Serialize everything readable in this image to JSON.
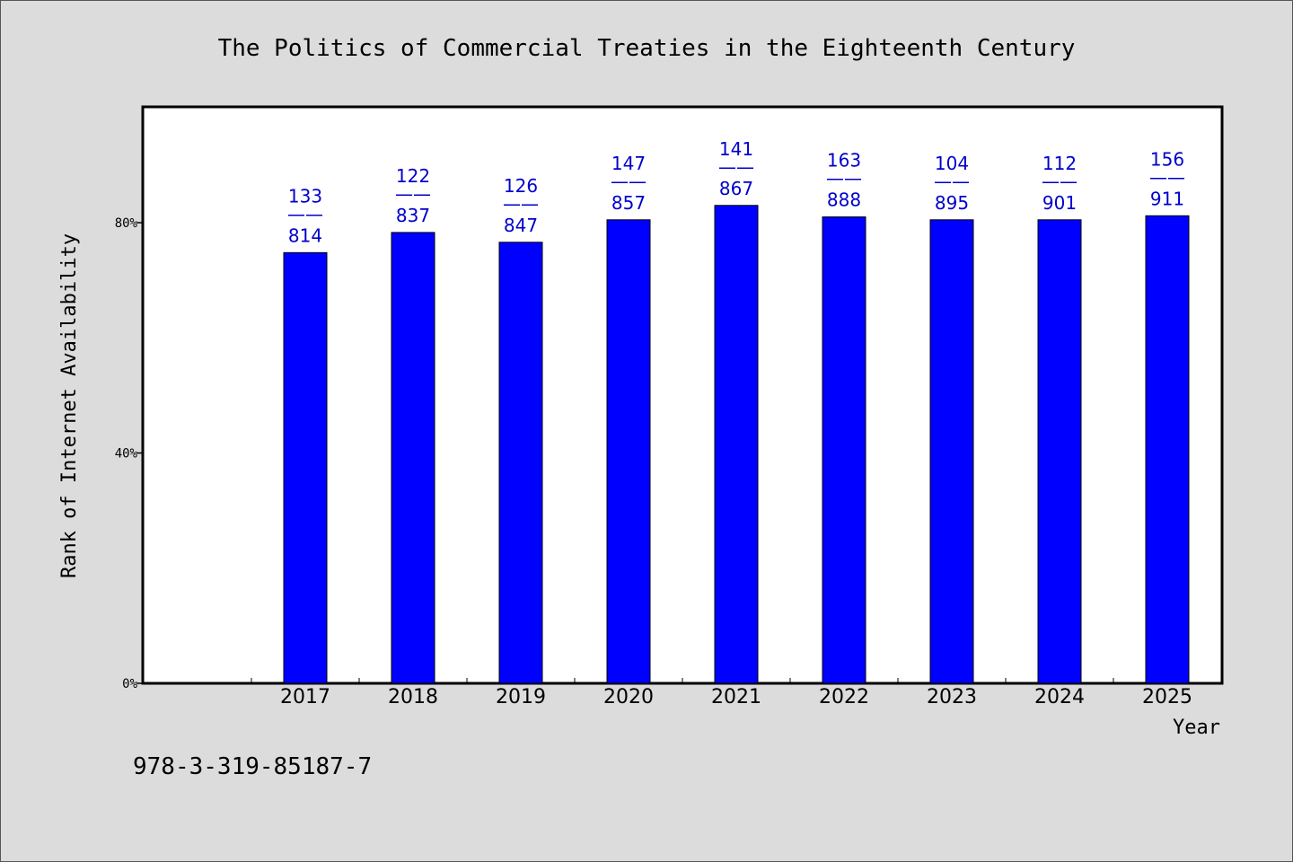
{
  "chart_data": {
    "type": "bar",
    "title": "The Politics of Commercial Treaties in the Eighteenth Century",
    "xlabel": "Year",
    "ylabel": "Rank of Internet Availability",
    "categories": [
      "2017",
      "2018",
      "2019",
      "2020",
      "2021",
      "2022",
      "2023",
      "2024",
      "2025"
    ],
    "values": [
      74.8,
      78.3,
      76.6,
      80.5,
      83.0,
      81.0,
      80.5,
      80.5,
      81.2
    ],
    "bar_labels": [
      {
        "top": "133",
        "sep": "——",
        "bottom": "814"
      },
      {
        "top": "122",
        "sep": "——",
        "bottom": "837"
      },
      {
        "top": "126",
        "sep": "——",
        "bottom": "847"
      },
      {
        "top": "147",
        "sep": "——",
        "bottom": "857"
      },
      {
        "top": "141",
        "sep": "——",
        "bottom": "867"
      },
      {
        "top": "163",
        "sep": "——",
        "bottom": "888"
      },
      {
        "top": "104",
        "sep": "——",
        "bottom": "895"
      },
      {
        "top": "112",
        "sep": "——",
        "bottom": "901"
      },
      {
        "top": "156",
        "sep": "——",
        "bottom": "911"
      }
    ],
    "yticks": [
      0,
      40,
      80
    ],
    "ytick_labels": [
      "0%",
      "40%",
      "80%"
    ],
    "ylim": [
      0,
      100
    ],
    "grid": false,
    "legend": "none",
    "colors": {
      "bar": "#0000ff",
      "label": "#0000cc",
      "plot_bg": "#ffffff",
      "page_bg": "#dcdcdc"
    }
  },
  "footer": {
    "isbn": "978-3-319-85187-7"
  }
}
